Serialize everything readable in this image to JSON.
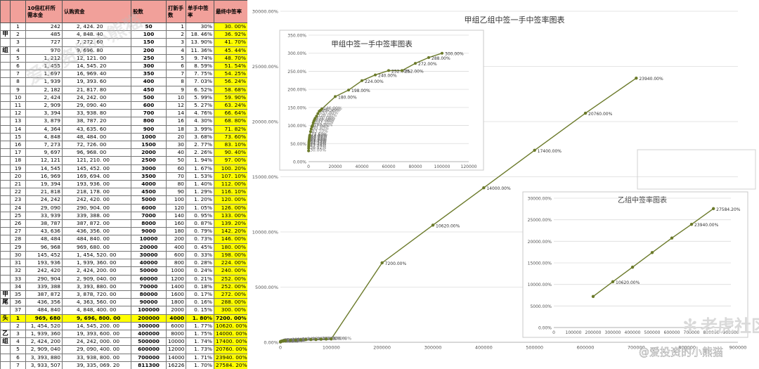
{
  "table": {
    "headers": [
      "",
      "",
      "10倍杠杆所需本金",
      "认购资金",
      "股数",
      "打新手数",
      "单手中签率",
      "最终中签率"
    ],
    "rows": [
      {
        "g": "",
        "i": "1",
        "p": "242",
        "s": "2, 424. 20",
        "sh": "50",
        "l": "1",
        "r": "30%",
        "f": "30. 00%"
      },
      {
        "g": "甲",
        "i": "2",
        "p": "485",
        "s": "4, 848. 40",
        "sh": "100",
        "l": "2",
        "r": "18. 46%",
        "f": "36. 92%"
      },
      {
        "g": "",
        "i": "3",
        "p": "727",
        "s": "7, 272. 60",
        "sh": "150",
        "l": "3",
        "r": "13. 90%",
        "f": "41. 70%"
      },
      {
        "g": "组",
        "i": "4",
        "p": "970",
        "s": "9, 696. 80",
        "sh": "200",
        "l": "4",
        "r": "11. 36%",
        "f": "45. 44%"
      },
      {
        "g": "",
        "i": "5",
        "p": "1, 212",
        "s": "12, 121. 00",
        "sh": "250",
        "l": "5",
        "r": "9. 74%",
        "f": "48. 70%"
      },
      {
        "g": "",
        "i": "6",
        "p": "1, 455",
        "s": "14, 545. 20",
        "sh": "300",
        "l": "6",
        "r": "8. 59%",
        "f": "51. 54%"
      },
      {
        "g": "",
        "i": "7",
        "p": "1, 697",
        "s": "16, 969. 40",
        "sh": "350",
        "l": "7",
        "r": "7. 75%",
        "f": "54. 25%"
      },
      {
        "g": "",
        "i": "8",
        "p": "1, 939",
        "s": "19, 393. 60",
        "sh": "400",
        "l": "8",
        "r": "7. 03%",
        "f": "56. 24%"
      },
      {
        "g": "",
        "i": "9",
        "p": "2, 182",
        "s": "21, 817. 80",
        "sh": "450",
        "l": "9",
        "r": "6. 52%",
        "f": "58. 68%"
      },
      {
        "g": "",
        "i": "10",
        "p": "2, 424",
        "s": "24, 242. 00",
        "sh": "500",
        "l": "10",
        "r": "5. 99%",
        "f": "59. 90%"
      },
      {
        "g": "",
        "i": "11",
        "p": "2, 909",
        "s": "29, 090. 40",
        "sh": "600",
        "l": "12",
        "r": "5. 27%",
        "f": "63. 24%"
      },
      {
        "g": "",
        "i": "12",
        "p": "3, 394",
        "s": "33, 938. 80",
        "sh": "700",
        "l": "14",
        "r": "4. 76%",
        "f": "66. 64%"
      },
      {
        "g": "",
        "i": "13",
        "p": "3, 879",
        "s": "38, 787. 20",
        "sh": "800",
        "l": "16",
        "r": "4. 30%",
        "f": "68. 80%"
      },
      {
        "g": "",
        "i": "14",
        "p": "4, 364",
        "s": "43, 635. 60",
        "sh": "900",
        "l": "18",
        "r": "3. 99%",
        "f": "71. 82%"
      },
      {
        "g": "",
        "i": "15",
        "p": "4, 848",
        "s": "48, 484. 00",
        "sh": "1000",
        "l": "20",
        "r": "3. 68%",
        "f": "73. 60%"
      },
      {
        "g": "",
        "i": "16",
        "p": "7, 273",
        "s": "72, 726. 00",
        "sh": "1500",
        "l": "30",
        "r": "2. 77%",
        "f": "83. 10%"
      },
      {
        "g": "",
        "i": "17",
        "p": "9, 697",
        "s": "96, 968. 00",
        "sh": "2000",
        "l": "40",
        "r": "2. 26%",
        "f": "90. 40%"
      },
      {
        "g": "",
        "i": "18",
        "p": "12, 121",
        "s": "121, 210. 00",
        "sh": "2500",
        "l": "50",
        "r": "1. 94%",
        "f": "97. 00%"
      },
      {
        "g": "",
        "i": "19",
        "p": "14, 545",
        "s": "145, 452. 00",
        "sh": "3000",
        "l": "60",
        "r": "1. 67%",
        "f": "100. 20%"
      },
      {
        "g": "",
        "i": "20",
        "p": "16, 969",
        "s": "169, 694. 00",
        "sh": "3500",
        "l": "70",
        "r": "1. 53%",
        "f": "107. 10%"
      },
      {
        "g": "",
        "i": "21",
        "p": "19, 394",
        "s": "193, 936. 00",
        "sh": "4000",
        "l": "80",
        "r": "1. 40%",
        "f": "112. 00%"
      },
      {
        "g": "",
        "i": "22",
        "p": "21, 818",
        "s": "218, 178. 00",
        "sh": "4500",
        "l": "90",
        "r": "1. 29%",
        "f": "116. 10%"
      },
      {
        "g": "",
        "i": "23",
        "p": "24, 242",
        "s": "242, 420. 00",
        "sh": "5000",
        "l": "100",
        "r": "1. 20%",
        "f": "120. 00%"
      },
      {
        "g": "",
        "i": "24",
        "p": "29, 090",
        "s": "290, 904. 00",
        "sh": "6000",
        "l": "120",
        "r": "1. 05%",
        "f": "126. 00%"
      },
      {
        "g": "",
        "i": "25",
        "p": "33, 939",
        "s": "339, 388. 00",
        "sh": "7000",
        "l": "140",
        "r": "0. 95%",
        "f": "133. 00%"
      },
      {
        "g": "",
        "i": "26",
        "p": "38, 787",
        "s": "387, 872. 00",
        "sh": "8000",
        "l": "160",
        "r": "0. 87%",
        "f": "139. 20%"
      },
      {
        "g": "",
        "i": "27",
        "p": "43, 636",
        "s": "436, 356. 00",
        "sh": "9000",
        "l": "180",
        "r": "0. 79%",
        "f": "142. 20%"
      },
      {
        "g": "",
        "i": "28",
        "p": "48, 484",
        "s": "484, 840. 00",
        "sh": "10000",
        "l": "200",
        "r": "0. 73%",
        "f": "146. 00%"
      },
      {
        "g": "",
        "i": "29",
        "p": "96, 968",
        "s": "969, 680. 00",
        "sh": "20000",
        "l": "400",
        "r": "0. 45%",
        "f": "180. 00%"
      },
      {
        "g": "",
        "i": "30",
        "p": "145, 452",
        "s": "1, 454, 520. 00",
        "sh": "30000",
        "l": "600",
        "r": "0. 33%",
        "f": "198. 00%"
      },
      {
        "g": "",
        "i": "31",
        "p": "193, 936",
        "s": "1, 939, 360. 00",
        "sh": "40000",
        "l": "800",
        "r": "0. 28%",
        "f": "224. 00%"
      },
      {
        "g": "",
        "i": "32",
        "p": "242, 420",
        "s": "2, 424, 200. 00",
        "sh": "50000",
        "l": "1000",
        "r": "0. 24%",
        "f": "240. 00%"
      },
      {
        "g": "",
        "i": "33",
        "p": "290, 904",
        "s": "2, 909, 040. 00",
        "sh": "60000",
        "l": "1200",
        "r": "0. 21%",
        "f": "252. 00%"
      },
      {
        "g": "",
        "i": "34",
        "p": "339, 388",
        "s": "3, 393, 880. 00",
        "sh": "70000",
        "l": "1400",
        "r": "0. 18%",
        "f": "252. 00%"
      },
      {
        "g": "甲",
        "i": "35",
        "p": "387, 872",
        "s": "3, 878, 720. 00",
        "sh": "80000",
        "l": "1600",
        "r": "0. 17%",
        "f": "272. 00%"
      },
      {
        "g": "尾",
        "i": "36",
        "p": "436, 356",
        "s": "4, 363, 560. 00",
        "sh": "90000",
        "l": "1800",
        "r": "0. 16%",
        "f": "288. 00%"
      },
      {
        "g": "",
        "i": "37",
        "p": "484, 840",
        "s": "4, 848, 400. 00",
        "sh": "100000",
        "l": "2000",
        "r": "0. 15%",
        "f": "300. 00%"
      },
      {
        "g": "头",
        "i": "1",
        "p": "969, 680",
        "s": "9, 696, 800. 00",
        "sh": "200000",
        "l": "4000",
        "r": "1. 80%",
        "f": "7200. 00%",
        "hl": true
      },
      {
        "g": "",
        "i": "2",
        "p": "1, 454, 520",
        "s": "14, 545, 200. 00",
        "sh": "300000",
        "l": "6000",
        "r": "1. 77%",
        "f": "10620. 00%"
      },
      {
        "g": "乙",
        "i": "3",
        "p": "1, 939, 360",
        "s": "19, 393, 600. 00",
        "sh": "400000",
        "l": "8000",
        "r": "1. 75%",
        "f": "14000. 00%"
      },
      {
        "g": "组",
        "i": "4",
        "p": "2, 424, 200",
        "s": "24, 242, 000. 00",
        "sh": "500000",
        "l": "10000",
        "r": "1. 74%",
        "f": "17400. 00%"
      },
      {
        "g": "",
        "i": "5",
        "p": "2, 909, 040",
        "s": "29, 090, 400. 00",
        "sh": "600000",
        "l": "12000",
        "r": "1. 73%",
        "f": "20760. 00%"
      },
      {
        "g": "",
        "i": "6",
        "p": "3, 393, 880",
        "s": "33, 938, 800. 00",
        "sh": "700000",
        "l": "14000",
        "r": "1. 71%",
        "f": "23940. 00%"
      },
      {
        "g": "",
        "i": "7",
        "p": "3, 933, 507",
        "s": "39, 335, 069. 20",
        "sh": "811300",
        "l": "16226",
        "r": "1. 70%",
        "f": "27584. 20%"
      }
    ]
  },
  "watermarks": [
    "爱投资的小熊猫",
    "老虎社区",
    "@爱投资的小熊猫"
  ],
  "chart_data": [
    {
      "type": "line",
      "title": "甲组乙组中签一手中签率图表",
      "xlim": [
        0,
        900000
      ],
      "ylim": [
        0,
        30000
      ],
      "xticks": [
        "0",
        "100000",
        "200000",
        "300000",
        "400000",
        "500000",
        "600000",
        "700000",
        "800000",
        "900000"
      ],
      "yticks": [
        "0.00%",
        "5000.00%",
        "10000.00%",
        "15000.00%",
        "20000.00%",
        "25000.00%",
        "30000.00%"
      ],
      "x": [
        50,
        100,
        150,
        200,
        250,
        300,
        350,
        400,
        450,
        500,
        600,
        700,
        800,
        900,
        1000,
        1500,
        2000,
        2500,
        3000,
        3500,
        4000,
        4500,
        5000,
        6000,
        7000,
        8000,
        9000,
        10000,
        20000,
        30000,
        40000,
        50000,
        60000,
        70000,
        80000,
        90000,
        100000,
        200000,
        300000,
        400000,
        500000,
        600000,
        700000
      ],
      "y": [
        30,
        36.92,
        41.7,
        45.44,
        48.7,
        51.54,
        54.25,
        56.24,
        58.68,
        59.9,
        63.24,
        66.64,
        68.8,
        71.82,
        73.6,
        83.1,
        90.4,
        97,
        100.2,
        107.1,
        112,
        116.1,
        120,
        126,
        133,
        139.2,
        142.2,
        146,
        180,
        198,
        224,
        240,
        252,
        252,
        272,
        288,
        300,
        7200,
        10620,
        14000,
        17400,
        20760,
        23940
      ],
      "labels": [
        "30.00%",
        "36.92%",
        "41.70%",
        "45.44%",
        "48.70%",
        "51.54%",
        "54.25%",
        "56.24%",
        "58.68%",
        "59.90%",
        "63.24%",
        "66.64%",
        "68.80%",
        "71.82%",
        "73.60%",
        "83.10%",
        "90.40%",
        "97.00%",
        "100.20%",
        "107.10%",
        "112.00%",
        "116.10%",
        "120.00%",
        "126.00%",
        "133.00%",
        "139.20%",
        "142.20%",
        "146.00%",
        "180.00%",
        "198.00%",
        "224.00%",
        "240.00%",
        "252.00%",
        "252.00%",
        "272.00%",
        "288.00%",
        "300.00%",
        "7200.00%",
        "10620.00%",
        "14000.00%",
        "17400.00%",
        "20760.00%",
        "23940.00%"
      ],
      "color": "#6b7a2a"
    },
    {
      "type": "line",
      "title": "甲组中签一手中签率图表",
      "xlim": [
        0,
        120000
      ],
      "ylim": [
        0,
        350
      ],
      "xticks": [
        "0",
        "20000",
        "40000",
        "60000",
        "80000",
        "100000",
        "120000"
      ],
      "yticks": [
        "0.00%",
        "50.00%",
        "100.00%",
        "150.00%",
        "200.00%",
        "250.00%",
        "300.00%",
        "350.00%"
      ],
      "x": [
        50,
        100,
        150,
        200,
        250,
        300,
        350,
        400,
        450,
        500,
        600,
        700,
        800,
        900,
        1000,
        1500,
        2000,
        2500,
        3000,
        3500,
        4000,
        4500,
        5000,
        6000,
        7000,
        8000,
        9000,
        10000,
        20000,
        30000,
        40000,
        50000,
        60000,
        70000,
        80000,
        90000,
        100000
      ],
      "y": [
        30,
        36.92,
        41.7,
        45.44,
        48.7,
        51.54,
        54.25,
        56.24,
        58.68,
        59.9,
        63.24,
        66.64,
        68.8,
        71.82,
        73.6,
        83.1,
        90.4,
        97,
        100.2,
        107.1,
        112,
        116.1,
        120,
        126,
        133,
        139.2,
        142.2,
        146,
        180,
        198,
        224,
        240,
        252,
        252,
        272,
        288,
        300
      ],
      "labels": [
        "30.00%",
        "36.92%",
        "41.70%",
        "45.44%",
        "48.70%",
        "51.54%",
        "54.25%",
        "56.24%",
        "58.68%",
        "59.90%",
        "63.24%",
        "66.64%",
        "68.80%",
        "71.82%",
        "73.60%",
        "83.10%",
        "90.40%",
        "97.00%",
        "100.20%",
        "107.10%",
        "112.00%",
        "116.10%",
        "120.00%",
        "126.00%",
        "133.00%",
        "139.20%",
        "142.20%",
        "146.00%",
        "180.00%",
        "198.00%",
        "224.00%",
        "240.00%",
        "252.00%",
        "252.00%",
        "272.00%",
        "288.00%",
        "300.00%"
      ],
      "color": "#6b7a2a"
    },
    {
      "type": "line",
      "title": "乙组中签率图表",
      "xlim": [
        0,
        900000
      ],
      "ylim": [
        0,
        30000
      ],
      "xticks": [
        "0",
        "100000",
        "200000",
        "300000",
        "400000",
        "500000",
        "600000",
        "700000",
        "800000",
        "900000"
      ],
      "yticks": [
        "0.00%",
        "5000.00%",
        "10000.00%",
        "15000.00%",
        "20000.00%",
        "25000.00%",
        "30000.00%"
      ],
      "x": [
        200000,
        300000,
        400000,
        500000,
        600000,
        700000,
        811300
      ],
      "y": [
        7200,
        10620,
        14000,
        17400,
        20760,
        23940,
        27584.2
      ],
      "labels": [
        "",
        "10620.00%",
        "",
        "",
        "",
        "23940.00%",
        "27584.20%"
      ],
      "color": "#6b7a2a"
    }
  ]
}
